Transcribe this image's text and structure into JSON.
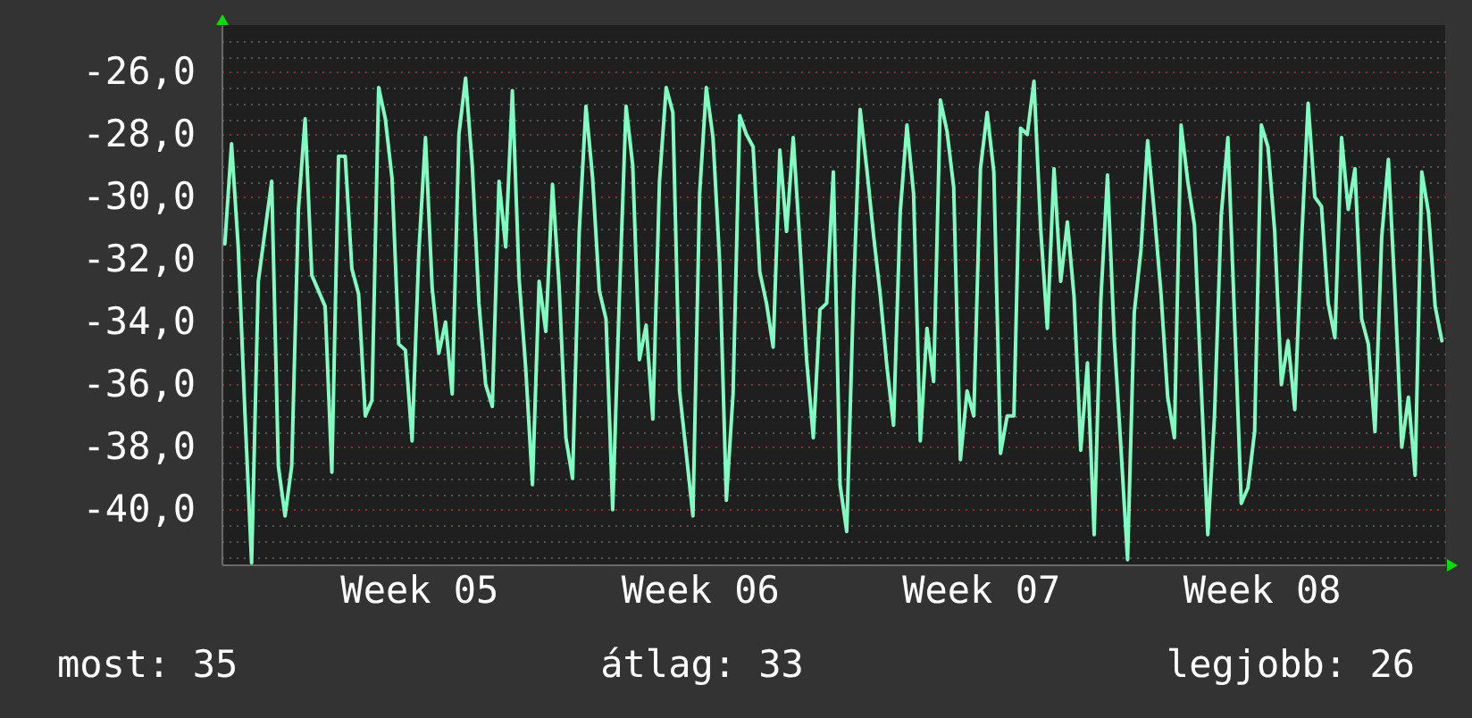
{
  "chart_data": {
    "type": "line",
    "color": "#80ffc0",
    "grid": "y",
    "categories": [
      null,
      null,
      null,
      null,
      null,
      null,
      null,
      null,
      null,
      null,
      null,
      null,
      null,
      null,
      null,
      null,
      null,
      null,
      null,
      null,
      null,
      null,
      null,
      null,
      null,
      null,
      null,
      null,
      null,
      "Week 05",
      null,
      null,
      null,
      null,
      null,
      null,
      null,
      null,
      null,
      null,
      null,
      null,
      null,
      null,
      null,
      null,
      null,
      null,
      null,
      null,
      null,
      null,
      null,
      null,
      null,
      null,
      null,
      null,
      null,
      null,
      null,
      null,
      null,
      null,
      null,
      null,
      null,
      null,
      null,
      null,
      null,
      "Week 06",
      null,
      null,
      null,
      null,
      null,
      null,
      null,
      null,
      null,
      null,
      null,
      null,
      null,
      null,
      null,
      null,
      null,
      null,
      null,
      null,
      null,
      null,
      null,
      null,
      null,
      null,
      null,
      null,
      null,
      null,
      null,
      null,
      null,
      null,
      null,
      null,
      null,
      null,
      null,
      null,
      null,
      "Week 07",
      null,
      null,
      null,
      null,
      null,
      null,
      null,
      null,
      null,
      null,
      null,
      null,
      null,
      null,
      null,
      null,
      null,
      null,
      null,
      null,
      null,
      null,
      null,
      null,
      null,
      null,
      null,
      null,
      null,
      null,
      null,
      null,
      null,
      null,
      null,
      null,
      null,
      null,
      null,
      null,
      null,
      "Week 08",
      null,
      null,
      null,
      null,
      null,
      null,
      null,
      null,
      null,
      null,
      null,
      null,
      null,
      null,
      null,
      null,
      null,
      null,
      null,
      null,
      null,
      null,
      null,
      null,
      null,
      null,
      null
    ],
    "ylim": [
      -41.75,
      -24.5
    ],
    "yticks": [
      {
        "value": -41.5,
        "label": null
      },
      {
        "value": -41,
        "label": null
      },
      {
        "value": -40.5,
        "label": null
      },
      {
        "value": -40,
        "label": "-40,0"
      },
      {
        "value": -39.5,
        "label": null
      },
      {
        "value": -39,
        "label": null
      },
      {
        "value": -38.5,
        "label": null
      },
      {
        "value": -38,
        "label": "-38,0"
      },
      {
        "value": -37.5,
        "label": null
      },
      {
        "value": -37,
        "label": null
      },
      {
        "value": -36.5,
        "label": null
      },
      {
        "value": -36,
        "label": "-36,0"
      },
      {
        "value": -35.5,
        "label": null
      },
      {
        "value": -35,
        "label": null
      },
      {
        "value": -34.5,
        "label": null
      },
      {
        "value": -34,
        "label": "-34,0"
      },
      {
        "value": -33.5,
        "label": null
      },
      {
        "value": -33,
        "label": null
      },
      {
        "value": -32.5,
        "label": null
      },
      {
        "value": -32,
        "label": "-32,0"
      },
      {
        "value": -31.5,
        "label": null
      },
      {
        "value": -31,
        "label": null
      },
      {
        "value": -30.5,
        "label": null
      },
      {
        "value": -30,
        "label": "-30,0"
      },
      {
        "value": -29.5,
        "label": null
      },
      {
        "value": -29,
        "label": null
      },
      {
        "value": -28.5,
        "label": null
      },
      {
        "value": -28,
        "label": "-28,0"
      },
      {
        "value": -27.5,
        "label": null
      },
      {
        "value": -27,
        "label": null
      },
      {
        "value": -26.5,
        "label": null
      },
      {
        "value": -26,
        "label": "-26,0"
      },
      {
        "value": -25.5,
        "label": null
      },
      {
        "value": -25,
        "label": null
      }
    ],
    "values": [
      -31.5,
      -28.3,
      -31.6,
      -36.9,
      -41.7,
      -32.7,
      -31.1,
      -29.5,
      -38.6,
      -40.2,
      -38.6,
      -30.4,
      -27.5,
      -32.5,
      -33.0,
      -33.5,
      -38.8,
      -28.7,
      -28.7,
      -32.3,
      -33.1,
      -37.0,
      -36.5,
      -26.5,
      -27.5,
      -29.4,
      -34.7,
      -34.9,
      -37.8,
      -31.8,
      -28.1,
      -32.9,
      -35.0,
      -34.0,
      -36.3,
      -28.0,
      -26.2,
      -29.0,
      -33.4,
      -36.0,
      -36.7,
      -29.5,
      -31.6,
      -26.6,
      -32.6,
      -35.5,
      -39.2,
      -32.7,
      -34.3,
      -29.6,
      -32.9,
      -37.7,
      -39.0,
      -31.1,
      -27.1,
      -29.4,
      -33.0,
      -33.9,
      -40.0,
      -33.2,
      -27.1,
      -29.0,
      -35.2,
      -34.1,
      -37.1,
      -29.5,
      -26.5,
      -27.3,
      -36.2,
      -38.2,
      -40.2,
      -29.9,
      -26.5,
      -28.1,
      -32.1,
      -39.7,
      -36.3,
      -27.4,
      -28.0,
      -28.4,
      -32.4,
      -33.4,
      -34.8,
      -28.5,
      -31.1,
      -28.1,
      -31.5,
      -35.2,
      -37.7,
      -33.6,
      -33.4,
      -29.2,
      -39.2,
      -40.7,
      -33.2,
      -27.2,
      -29.1,
      -31.2,
      -33.1,
      -35.4,
      -37.3,
      -30.5,
      -27.7,
      -29.9,
      -37.8,
      -34.2,
      -35.9,
      -26.9,
      -27.9,
      -29.7,
      -38.4,
      -36.2,
      -37.0,
      -29.1,
      -27.3,
      -29.2,
      -38.2,
      -37.0,
      -37.0,
      -27.8,
      -28.0,
      -26.3,
      -31.0,
      -34.2,
      -29.1,
      -32.7,
      -30.8,
      -33.2,
      -38.1,
      -35.3,
      -40.8,
      -33.3,
      -29.3,
      -34.5,
      -38.0,
      -41.6,
      -33.7,
      -31.7,
      -28.2,
      -30.5,
      -33.1,
      -36.4,
      -37.7,
      -27.7,
      -29.5,
      -30.9,
      -36.0,
      -40.8,
      -37.0,
      -30.6,
      -28.1,
      -33.9,
      -39.8,
      -39.3,
      -37.5,
      -27.7,
      -28.4,
      -31.1,
      -36.0,
      -34.6,
      -36.8,
      -31.5,
      -27.0,
      -30.0,
      -30.3,
      -33.4,
      -34.5,
      -28.1,
      -30.4,
      -29.1,
      -33.9,
      -34.7,
      -37.5,
      -31.3,
      -28.8,
      -33.1,
      -38.0,
      -36.4,
      -38.9,
      -29.2,
      -30.5,
      -33.5,
      -34.6
    ],
    "annotations": [
      "most: 35",
      "átlag: 33",
      "legjobb: 26"
    ]
  }
}
